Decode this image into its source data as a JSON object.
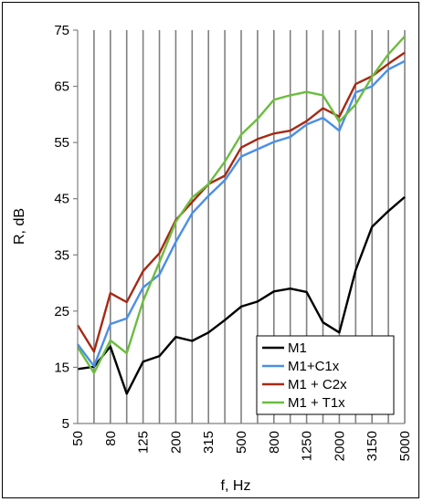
{
  "chart_data": {
    "type": "line",
    "xlabel": "f, Hz",
    "ylabel": "R, dB",
    "ylim": [
      5,
      75
    ],
    "y_ticks": [
      5,
      15,
      25,
      35,
      45,
      55,
      65,
      75
    ],
    "x": [
      "50",
      "63",
      "80",
      "100",
      "125",
      "160",
      "200",
      "250",
      "315",
      "400",
      "500",
      "630",
      "800",
      "1000",
      "1250",
      "1600",
      "2000",
      "2500",
      "3150",
      "4000",
      "5000"
    ],
    "x_tick_labels": [
      "50",
      "80",
      "125",
      "200",
      "315",
      "500",
      "800",
      "1250",
      "2000",
      "3150",
      "5000"
    ],
    "grid": "vertical",
    "legend_position": "bottom-right",
    "series": [
      {
        "name": "M1",
        "color": "#000000",
        "values": [
          14.7,
          15.1,
          18.7,
          10.3,
          16.0,
          17.0,
          20.4,
          19.7,
          21.2,
          23.4,
          25.8,
          26.7,
          28.5,
          29.0,
          28.4,
          23.0,
          21.2,
          32.3,
          40.0,
          42.8,
          45.3
        ]
      },
      {
        "name": "M1+C1x",
        "color": "#4a8fe6",
        "values": [
          19.1,
          15.2,
          22.7,
          23.7,
          29.2,
          31.5,
          37.3,
          42.4,
          45.5,
          48.3,
          52.5,
          53.8,
          55.1,
          56.0,
          58.2,
          59.4,
          57.1,
          63.9,
          65.0,
          68.0,
          69.5
        ]
      },
      {
        "name": "M1 + C2x",
        "color": "#a52a14",
        "values": [
          22.5,
          17.8,
          28.2,
          26.6,
          32.1,
          35.3,
          41.2,
          44.4,
          47.6,
          49.1,
          54.1,
          55.6,
          56.6,
          57.1,
          58.8,
          61.1,
          59.6,
          65.4,
          66.8,
          69.0,
          71.0
        ]
      },
      {
        "name": "M1 + T1x",
        "color": "#6bbd3e",
        "values": [
          18.6,
          14.0,
          19.8,
          17.5,
          26.8,
          33.7,
          40.9,
          45.2,
          47.6,
          51.6,
          56.4,
          59.2,
          62.6,
          63.4,
          64.0,
          63.4,
          58.7,
          61.8,
          66.7,
          70.7,
          73.9
        ]
      }
    ]
  }
}
